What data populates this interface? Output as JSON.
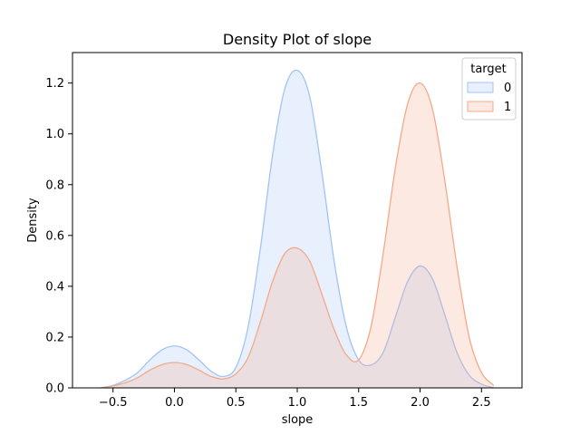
{
  "chart_data": {
    "type": "area",
    "title": "Density Plot of slope",
    "xlabel": "slope",
    "ylabel": "Density",
    "xlim": [
      -0.83,
      2.83
    ],
    "ylim": [
      0,
      1.32
    ],
    "xticks": [
      -0.5,
      0.0,
      0.5,
      1.0,
      1.5,
      2.0,
      2.5
    ],
    "xtick_labels": [
      "−0.5",
      "0.0",
      "0.5",
      "1.0",
      "1.5",
      "2.0",
      "2.5"
    ],
    "yticks": [
      0.0,
      0.2,
      0.4,
      0.6,
      0.8,
      1.0,
      1.2
    ],
    "ytick_labels": [
      "0.0",
      "0.2",
      "0.4",
      "0.6",
      "0.8",
      "1.0",
      "1.2"
    ],
    "grid": false,
    "legend": {
      "title": "target",
      "placement": "top-right"
    },
    "series": [
      {
        "name": "0",
        "line_color": "#a1c4f5",
        "fill_color": "#a1c4f5",
        "x": [
          -0.6,
          -0.5,
          -0.4,
          -0.3,
          -0.2,
          -0.1,
          0.0,
          0.1,
          0.2,
          0.3,
          0.4,
          0.5,
          0.6,
          0.7,
          0.8,
          0.9,
          1.0,
          1.1,
          1.2,
          1.3,
          1.4,
          1.5,
          1.6,
          1.7,
          1.8,
          1.9,
          2.0,
          2.1,
          2.2,
          2.3,
          2.4,
          2.5,
          2.6
        ],
        "y": [
          0.0,
          0.01,
          0.03,
          0.06,
          0.11,
          0.15,
          0.165,
          0.15,
          0.11,
          0.065,
          0.045,
          0.08,
          0.24,
          0.55,
          0.92,
          1.18,
          1.25,
          1.15,
          0.85,
          0.5,
          0.24,
          0.11,
          0.09,
          0.14,
          0.28,
          0.42,
          0.48,
          0.43,
          0.29,
          0.14,
          0.05,
          0.015,
          0.0
        ]
      },
      {
        "name": "1",
        "line_color": "#f4a98a",
        "fill_color": "#f4a98a",
        "x": [
          -0.6,
          -0.5,
          -0.4,
          -0.3,
          -0.2,
          -0.1,
          0.0,
          0.1,
          0.2,
          0.3,
          0.4,
          0.5,
          0.6,
          0.7,
          0.8,
          0.9,
          1.0,
          1.1,
          1.2,
          1.3,
          1.4,
          1.5,
          1.6,
          1.7,
          1.8,
          1.9,
          2.0,
          2.1,
          2.2,
          2.3,
          2.4,
          2.5,
          2.6
        ],
        "y": [
          0.0,
          0.008,
          0.02,
          0.04,
          0.07,
          0.092,
          0.1,
          0.092,
          0.07,
          0.045,
          0.035,
          0.055,
          0.12,
          0.26,
          0.42,
          0.53,
          0.55,
          0.5,
          0.37,
          0.23,
          0.13,
          0.11,
          0.24,
          0.53,
          0.87,
          1.12,
          1.2,
          1.1,
          0.82,
          0.48,
          0.2,
          0.06,
          0.01
        ]
      }
    ]
  }
}
